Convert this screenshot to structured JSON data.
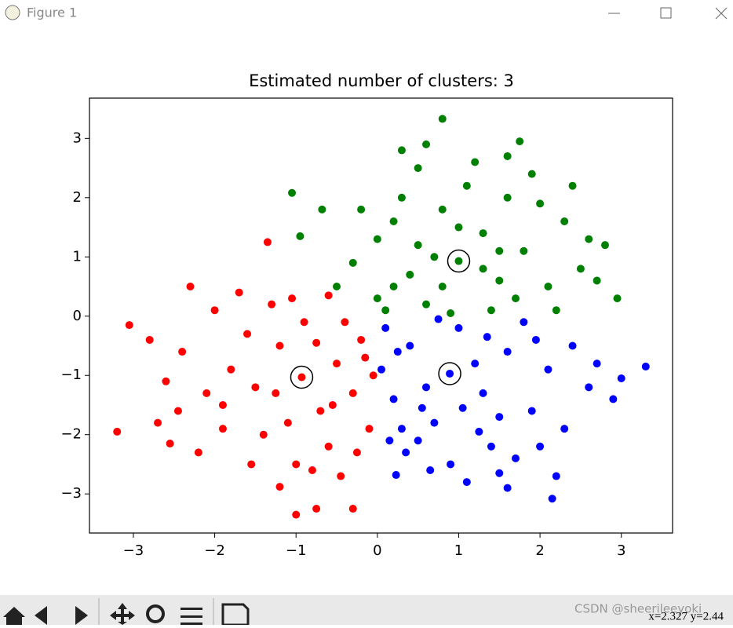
{
  "window_title": "Figure 1",
  "status_text": "x=2.327 y=2.44",
  "watermark": "CSDN @sheerileeyoki",
  "chart_data": {
    "type": "scatter",
    "title": "Estimated number of clusters: 3",
    "xlim": [
      -3.54,
      3.63
    ],
    "ylim": [
      -3.66,
      3.68
    ],
    "xticks": [
      {
        "value": -3,
        "label": "−3"
      },
      {
        "value": -2,
        "label": "−2"
      },
      {
        "value": -1,
        "label": "−1"
      },
      0,
      1,
      2,
      3
    ],
    "yticks": [
      {
        "value": -3,
        "label": "−3"
      },
      {
        "value": -2,
        "label": "−2"
      },
      {
        "value": -1,
        "label": "−1"
      },
      0,
      1,
      2,
      3
    ],
    "grid": false,
    "series": [
      {
        "color": "#ff0000",
        "marker": "dot",
        "x": [
          -0.93,
          -1.5,
          -0.5,
          -1.2,
          -0.7,
          -1.8,
          -0.3,
          -1.1,
          -0.2,
          -1.6,
          -2.1,
          -0.6,
          -1.4,
          -0.1,
          -2.4,
          -0.9,
          -1.9,
          -0.4,
          -2.6,
          -1.3,
          -0.8,
          -2.2,
          -0.05,
          -1.7,
          -2.8,
          -1.0,
          -0.45,
          -2.3,
          -2.0,
          -0.25,
          -1.55,
          -2.7,
          -0.15,
          -1.25,
          -0.75,
          -1.9,
          -0.55,
          -2.45,
          -1.05,
          -0.6,
          -3.2,
          -1.0,
          -0.3,
          -0.75,
          -1.2,
          -1.35,
          -3.05,
          -2.55
        ],
        "y": [
          -1.03,
          -1.2,
          -0.8,
          -0.5,
          -1.6,
          -0.9,
          -1.3,
          -1.8,
          -0.4,
          -0.3,
          -1.3,
          -2.2,
          -2.0,
          -1.9,
          -0.6,
          -0.1,
          -1.9,
          -0.1,
          -1.1,
          0.2,
          -2.6,
          -2.3,
          -1.0,
          0.4,
          -0.4,
          -2.5,
          -2.7,
          0.5,
          0.1,
          -2.3,
          -2.5,
          -1.8,
          -0.7,
          -1.3,
          -0.45,
          -1.5,
          -1.5,
          -1.6,
          0.3,
          0.35,
          -1.95,
          -3.35,
          -3.25,
          -3.25,
          -2.88,
          1.25,
          -0.15,
          -2.15
        ]
      },
      {
        "color": "#008000",
        "marker": "dot",
        "x": [
          1.0,
          0.5,
          1.5,
          0.8,
          1.3,
          0.2,
          1.8,
          0.6,
          1.1,
          0.0,
          2.1,
          1.6,
          0.3,
          0.9,
          2.3,
          1.4,
          0.1,
          -0.3,
          2.5,
          1.9,
          0.5,
          1.2,
          -0.2,
          0.7,
          1.7,
          0.4,
          2.0,
          2.6,
          -0.5,
          1.0,
          0.2,
          1.5,
          0.8,
          2.2,
          1.3,
          0.0,
          2.7,
          1.6,
          0.6,
          2.4,
          0.8,
          -1.05,
          -0.95,
          -0.68,
          2.95,
          2.8,
          1.75,
          0.3
        ],
        "y": [
          0.93,
          1.2,
          0.6,
          1.8,
          1.4,
          0.5,
          1.1,
          0.2,
          2.2,
          1.3,
          0.5,
          2.0,
          2.0,
          0.05,
          1.6,
          0.1,
          0.1,
          0.9,
          0.8,
          2.4,
          2.5,
          2.6,
          1.8,
          1.0,
          0.3,
          0.7,
          1.9,
          1.3,
          0.5,
          1.5,
          1.6,
          1.1,
          0.5,
          0.1,
          0.8,
          0.3,
          0.6,
          2.7,
          2.9,
          2.2,
          3.33,
          2.08,
          1.35,
          1.8,
          0.3,
          1.2,
          2.95,
          2.8
        ]
      },
      {
        "color": "#0000ff",
        "marker": "dot",
        "x": [
          0.89,
          0.4,
          1.3,
          0.7,
          1.6,
          0.2,
          1.0,
          1.9,
          0.5,
          1.4,
          0.1,
          2.1,
          0.9,
          1.8,
          0.3,
          1.2,
          2.3,
          0.6,
          1.5,
          0.05,
          2.4,
          1.1,
          0.35,
          1.7,
          2.0,
          0.75,
          1.35,
          0.15,
          2.6,
          1.95,
          0.55,
          1.05,
          2.2,
          0.65,
          1.6,
          2.7,
          0.25,
          1.25,
          3.3,
          2.15,
          3.0,
          0.23,
          1.5,
          2.9
        ],
        "y": [
          -0.97,
          -0.5,
          -1.3,
          -1.8,
          -0.6,
          -1.4,
          -0.2,
          -1.6,
          -2.1,
          -2.2,
          -0.2,
          -0.9,
          -2.5,
          -0.1,
          -1.9,
          -0.8,
          -1.9,
          -1.2,
          -1.7,
          -0.9,
          -0.5,
          -2.8,
          -2.3,
          -2.4,
          -2.2,
          -0.05,
          -0.35,
          -2.1,
          -1.2,
          -0.4,
          -1.55,
          -1.55,
          -2.7,
          -2.6,
          -2.9,
          -0.8,
          -0.6,
          -1.95,
          -0.85,
          -3.08,
          -1.05,
          -2.68,
          -2.65,
          -1.4
        ]
      },
      {
        "color": "#000000",
        "marker": "ring",
        "x": [
          1.0,
          -0.93,
          0.89
        ],
        "y": [
          0.93,
          -1.03,
          -0.97
        ]
      }
    ]
  }
}
